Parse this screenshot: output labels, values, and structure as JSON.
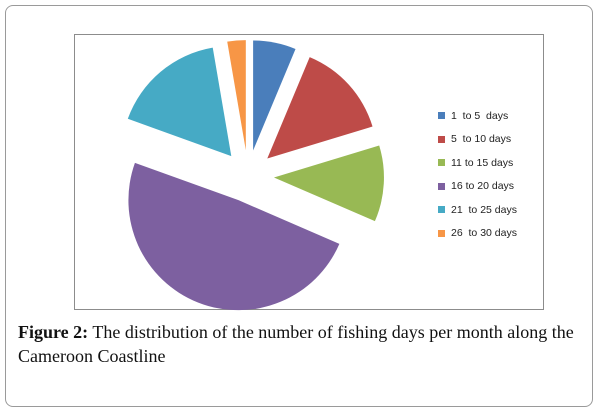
{
  "chart_data": {
    "type": "pie",
    "exploded": true,
    "legend_position": "right",
    "categories": [
      "1  to 5  days",
      "5  to 10 days",
      "11 to 15 days",
      "16 to 20 days",
      "21  to 25 days",
      "26  to 30 days"
    ],
    "values": [
      6.3,
      14.0,
      11.2,
      49.0,
      16.8,
      2.7
    ],
    "unit": "%",
    "colors": [
      "#4a7ebb",
      "#be4b48",
      "#98b954",
      "#7d60a0",
      "#46aac5",
      "#f79646"
    ]
  },
  "caption": {
    "label": "Figure 2:",
    "text": " The distribution of the number of fishing days per month along the Cameroon Coastline"
  }
}
